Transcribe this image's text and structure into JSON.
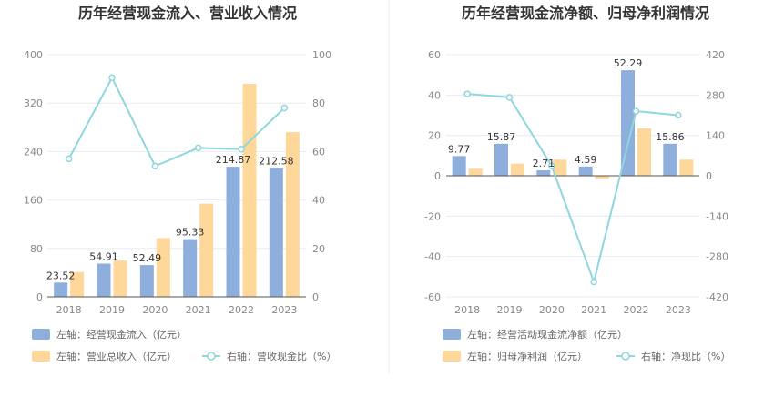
{
  "colors": {
    "bar_primary": "#8EAEDC",
    "bar_secondary": "#FDD89A",
    "line": "#8FD6DD",
    "grid": "#E8ECF4",
    "divider": "#EEEEEE"
  },
  "chart_data": [
    {
      "type": "bar",
      "title": "历年经营现金流入、营业收入情况",
      "categories": [
        "2018",
        "2019",
        "2020",
        "2021",
        "2022",
        "2023"
      ],
      "left_axis": {
        "ticks": [
          "0",
          "80",
          "160",
          "240",
          "320",
          "400"
        ],
        "ylim": [
          0,
          400
        ]
      },
      "right_axis": {
        "ticks": [
          "0",
          "20",
          "40",
          "60",
          "80",
          "100"
        ],
        "ylim": [
          0,
          100
        ]
      },
      "series": [
        {
          "name": "左轴：经营现金流入（亿元）",
          "axis": "left",
          "kind": "bar",
          "values": [
            23.52,
            54.91,
            52.49,
            95.33,
            214.87,
            212.58
          ],
          "labels": [
            "23.52",
            "54.91",
            "52.49",
            "95.33",
            "214.87",
            "212.58"
          ]
        },
        {
          "name": "左轴：营业总收入（亿元）",
          "axis": "left",
          "kind": "bar",
          "values": [
            41,
            60,
            97,
            154,
            352,
            272
          ]
        },
        {
          "name": "右轴：营收现金比（%）",
          "axis": "right",
          "kind": "line",
          "values": [
            57,
            90.5,
            54,
            61.5,
            61,
            78
          ]
        }
      ],
      "legend_rows": [
        [
          "左轴：经营现金流入（亿元）"
        ],
        [
          "左轴：营业总收入（亿元）",
          "右轴：营收现金比（%）"
        ]
      ]
    },
    {
      "type": "bar",
      "title": "历年经营现金流净额、归母净利润情况",
      "categories": [
        "2018",
        "2019",
        "2020",
        "2021",
        "2022",
        "2023"
      ],
      "left_axis": {
        "ticks": [
          "-60",
          "-40",
          "-20",
          "0",
          "20",
          "40",
          "60"
        ],
        "ylim": [
          -60,
          60
        ]
      },
      "right_axis": {
        "ticks": [
          "-420",
          "-280",
          "-140",
          "0",
          "140",
          "280",
          "420"
        ],
        "ylim": [
          -420,
          420
        ]
      },
      "series": [
        {
          "name": "左轴：经营活动现金流净额（亿元）",
          "axis": "left",
          "kind": "bar",
          "values": [
            9.77,
            15.87,
            2.71,
            4.59,
            52.29,
            15.86
          ],
          "labels": [
            "9.77",
            "15.87",
            "2.71",
            "4.59",
            "52.29",
            "15.86"
          ]
        },
        {
          "name": "左轴：归母净利润（亿元）",
          "axis": "left",
          "kind": "bar",
          "values": [
            3.5,
            6,
            8,
            -1.5,
            23.5,
            8
          ]
        },
        {
          "name": "右轴：净现比（%）",
          "axis": "right",
          "kind": "line",
          "values": [
            284,
            272,
            34,
            -368,
            224,
            210
          ]
        }
      ],
      "legend_rows": [
        [
          "左轴：经营活动现金流净额（亿元）"
        ],
        [
          "左轴：归母净利润（亿元）",
          "右轴：净现比（%）"
        ]
      ]
    }
  ]
}
